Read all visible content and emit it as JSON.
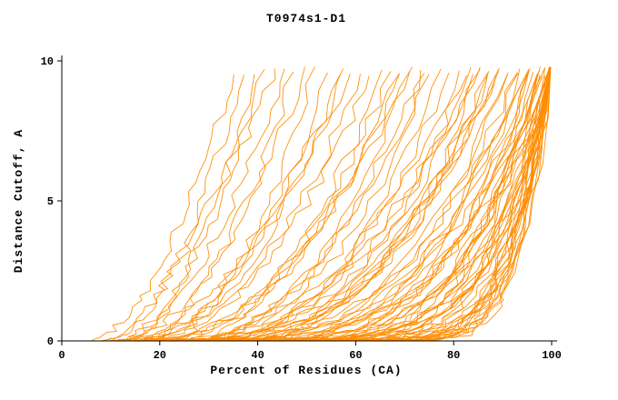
{
  "page": {
    "background": "#ffffff"
  },
  "chart_data": {
    "type": "line",
    "title": "T0974s1-D1",
    "xlabel": "Percent of Residues (CA)",
    "ylabel": "Distance Cutoff, A",
    "xlim": [
      0,
      100
    ],
    "ylim": [
      0,
      10
    ],
    "x_ticks": [
      0,
      20,
      40,
      60,
      80,
      100
    ],
    "y_ticks": [
      0,
      5,
      10
    ],
    "grid": false,
    "legend": false,
    "line_color": "#FF8C00",
    "axis_color": "#000000",
    "description": "Cumulative distance-cutoff curves (GDT-style) for many predicted models of target T0974s1-D1; each curve rises from ~0 A cutoff to ~9.7 A as the covered percent of CA residues increases.",
    "curve_model": "y = 10 * ((x - x0) / (x1 - x0)) ^ p, sampled with small jitter; x0 = percent at cutoff 0, x1 = percent near cutoff 10",
    "series_params_format": [
      "x0",
      "x1",
      "p"
    ],
    "series": [
      [
        6,
        36,
        1.7
      ],
      [
        8,
        38,
        1.9
      ],
      [
        9,
        42,
        1.6
      ],
      [
        11,
        40,
        2.0
      ],
      [
        12,
        46,
        1.8
      ],
      [
        10,
        50,
        2.1
      ],
      [
        13,
        44,
        1.5
      ],
      [
        14,
        52,
        2.3
      ],
      [
        15,
        48,
        1.9
      ],
      [
        12,
        55,
        2.4
      ],
      [
        11,
        58,
        2.0
      ],
      [
        13,
        62,
        2.2
      ],
      [
        15,
        60,
        1.8
      ],
      [
        16,
        66,
        2.5
      ],
      [
        17,
        58,
        2.0
      ],
      [
        18,
        70,
        2.2
      ],
      [
        19,
        64,
        1.9
      ],
      [
        20,
        72,
        2.6
      ],
      [
        21,
        68,
        2.1
      ],
      [
        22,
        75,
        2.3
      ],
      [
        23,
        70,
        2.0
      ],
      [
        24,
        78,
        2.7
      ],
      [
        25,
        74,
        2.2
      ],
      [
        26,
        80,
        2.4
      ],
      [
        18,
        76,
        2.8
      ],
      [
        16,
        72,
        2.1
      ],
      [
        20,
        82,
        2.5
      ],
      [
        22,
        84,
        2.9
      ],
      [
        24,
        86,
        2.3
      ],
      [
        26,
        88,
        2.6
      ],
      [
        28,
        84,
        2.2
      ],
      [
        30,
        86,
        2.8
      ],
      [
        28,
        90,
        2.4
      ],
      [
        30,
        92,
        3.0
      ],
      [
        32,
        88,
        2.5
      ],
      [
        34,
        90,
        2.2
      ],
      [
        32,
        94,
        2.7
      ],
      [
        34,
        96,
        3.1
      ],
      [
        15,
        85,
        3.2
      ],
      [
        17,
        88,
        3.5
      ],
      [
        19,
        90,
        3.0
      ],
      [
        21,
        92,
        3.4
      ],
      [
        23,
        94,
        3.8
      ],
      [
        25,
        96,
        3.2
      ],
      [
        27,
        98,
        3.6
      ],
      [
        29,
        100,
        3.3
      ],
      [
        31,
        96,
        3.0
      ],
      [
        33,
        98,
        3.5
      ],
      [
        35,
        100,
        3.8
      ],
      [
        37,
        97,
        3.2
      ],
      [
        39,
        99,
        3.6
      ],
      [
        41,
        100,
        4.0
      ],
      [
        36,
        94,
        2.9
      ],
      [
        38,
        96,
        3.3
      ],
      [
        40,
        98,
        3.7
      ],
      [
        42,
        100,
        3.1
      ],
      [
        44,
        98,
        3.5
      ],
      [
        46,
        100,
        3.9
      ],
      [
        43,
        96,
        3.0
      ],
      [
        45,
        99,
        3.4
      ],
      [
        47,
        100,
        4.2
      ],
      [
        48,
        98,
        3.6
      ],
      [
        50,
        100,
        4.0
      ],
      [
        49,
        99,
        3.2
      ],
      [
        51,
        100,
        4.4
      ],
      [
        52,
        100,
        3.7
      ],
      [
        30,
        100,
        5.0
      ],
      [
        33,
        100,
        5.5
      ],
      [
        36,
        100,
        4.8
      ],
      [
        39,
        100,
        5.2
      ],
      [
        42,
        100,
        5.8
      ],
      [
        45,
        100,
        5.0
      ],
      [
        48,
        100,
        5.5
      ],
      [
        50,
        100,
        6.0
      ],
      [
        52,
        100,
        5.2
      ],
      [
        54,
        100,
        5.8
      ],
      [
        55,
        100,
        6.5
      ],
      [
        56,
        100,
        5.4
      ],
      [
        57,
        100,
        6.0
      ],
      [
        58,
        100,
        6.8
      ],
      [
        59,
        100,
        5.6
      ],
      [
        60,
        100,
        6.2
      ],
      [
        53,
        100,
        7.0
      ],
      [
        47,
        100,
        6.4
      ],
      [
        44,
        100,
        6.8
      ],
      [
        40,
        100,
        7.2
      ],
      [
        57,
        99,
        6.0
      ],
      [
        55,
        98,
        5.6
      ]
    ]
  }
}
